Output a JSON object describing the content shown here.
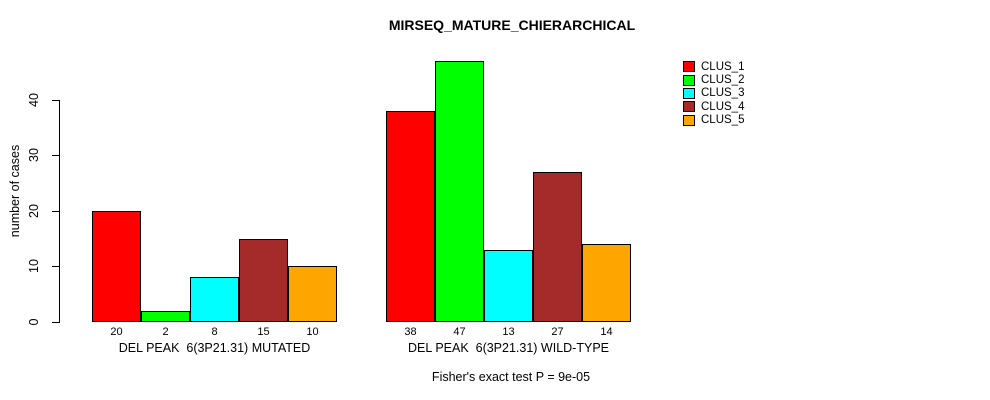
{
  "title": "MIRSEQ_MATURE_CHIERARCHICAL",
  "footnote": "Fisher's exact test P = 9e-05",
  "chart_data": {
    "type": "bar",
    "title": "MIRSEQ_MATURE_CHIERARCHICAL",
    "xlabel": "",
    "ylabel": "number of cases",
    "ylim": [
      0,
      47
    ],
    "yticks": [
      0,
      10,
      20,
      30,
      40
    ],
    "grid": false,
    "legend_position": "right",
    "bar_value_labels": true,
    "categories": [
      "DEL PEAK  6(3P21.31) MUTATED",
      "DEL PEAK  6(3P21.31) WILD-TYPE"
    ],
    "series": [
      {
        "name": "CLUS_1",
        "color": "#ff0000",
        "values": [
          20,
          38
        ]
      },
      {
        "name": "CLUS_2",
        "color": "#00ff00",
        "values": [
          2,
          47
        ]
      },
      {
        "name": "CLUS_3",
        "color": "#00ffff",
        "values": [
          8,
          13
        ]
      },
      {
        "name": "CLUS_4",
        "color": "#a52a2a",
        "values": [
          15,
          27
        ]
      },
      {
        "name": "CLUS_5",
        "color": "#ffa500",
        "values": [
          10,
          14
        ]
      }
    ],
    "annotation": "Fisher's exact test P = 9e-05"
  }
}
